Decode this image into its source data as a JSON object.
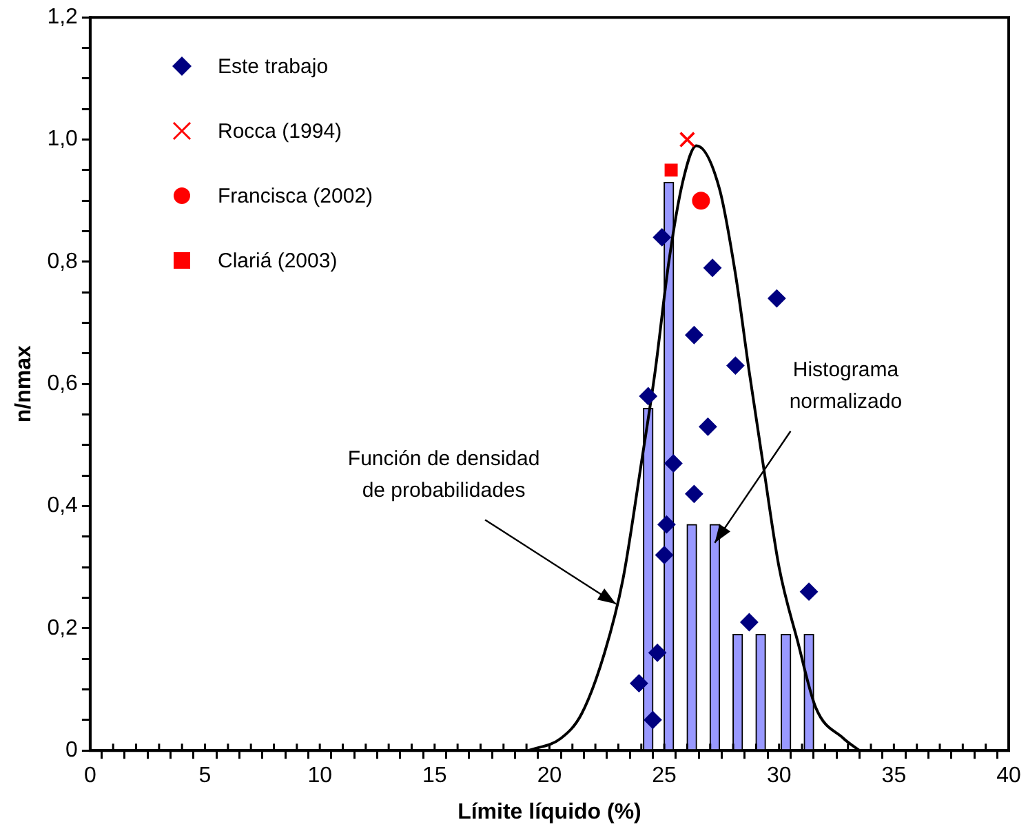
{
  "chart_data": {
    "type": "scatter",
    "xlabel": "Límite líquido (%)",
    "ylabel": "n/nmax",
    "xlim": [
      0,
      40
    ],
    "xticks": [
      0,
      {
        "value": 1,
        "label": null
      },
      {
        "value": 2,
        "label": null
      },
      {
        "value": 3,
        "label": null
      },
      {
        "value": 4,
        "label": null
      },
      5,
      {
        "value": 6,
        "label": null
      },
      {
        "value": 7,
        "label": null
      },
      {
        "value": 8,
        "label": null
      },
      {
        "value": 9,
        "label": null
      },
      10,
      {
        "value": 11,
        "label": null
      },
      {
        "value": 12,
        "label": null
      },
      {
        "value": 13,
        "label": null
      },
      {
        "value": 14,
        "label": null
      },
      15,
      {
        "value": 16,
        "label": null
      },
      {
        "value": 17,
        "label": null
      },
      {
        "value": 18,
        "label": null
      },
      {
        "value": 19,
        "label": null
      },
      20,
      {
        "value": 21,
        "label": null
      },
      {
        "value": 22,
        "label": null
      },
      {
        "value": 23,
        "label": null
      },
      {
        "value": 24,
        "label": null
      },
      25,
      {
        "value": 26,
        "label": null
      },
      {
        "value": 27,
        "label": null
      },
      {
        "value": 28,
        "label": null
      },
      {
        "value": 29,
        "label": null
      },
      30,
      {
        "value": 31,
        "label": null
      },
      {
        "value": 32,
        "label": null
      },
      {
        "value": 33,
        "label": null
      },
      {
        "value": 34,
        "label": null
      },
      35,
      {
        "value": 36,
        "label": null
      },
      {
        "value": 37,
        "label": null
      },
      {
        "value": 38,
        "label": null
      },
      {
        "value": 39,
        "label": null
      },
      40
    ],
    "ylim": [
      0,
      1.2
    ],
    "yticks": [
      0,
      {
        "value": 0.05,
        "label": null
      },
      {
        "value": 0.1,
        "label": null
      },
      {
        "value": 0.15,
        "label": null
      },
      {
        "value": 0.2,
        "label": "0,2"
      },
      {
        "value": 0.25,
        "label": null
      },
      {
        "value": 0.3,
        "label": null
      },
      {
        "value": 0.35,
        "label": null
      },
      {
        "value": 0.4,
        "label": "0,4"
      },
      {
        "value": 0.45,
        "label": null
      },
      {
        "value": 0.5,
        "label": null
      },
      {
        "value": 0.55,
        "label": null
      },
      {
        "value": 0.6,
        "label": "0,6"
      },
      {
        "value": 0.65,
        "label": null
      },
      {
        "value": 0.7,
        "label": null
      },
      {
        "value": 0.75,
        "label": null
      },
      {
        "value": 0.8,
        "label": "0,8"
      },
      {
        "value": 0.85,
        "label": null
      },
      {
        "value": 0.9,
        "label": null
      },
      {
        "value": 0.95,
        "label": null
      },
      {
        "value": 1,
        "label": "1,0"
      },
      {
        "value": 1.05,
        "label": null
      },
      {
        "value": 1.1,
        "label": null
      },
      {
        "value": 1.15,
        "label": null
      },
      {
        "value": 1.2,
        "label": "1,2"
      }
    ],
    "grid": false,
    "legend": "top left",
    "series": [
      {
        "type": "bar",
        "color": "#9999ff",
        "x": [
          24.3,
          25.2,
          26.2,
          27.2,
          28.2,
          29.2,
          30.3,
          31.3
        ],
        "values": [
          0.56,
          0.93,
          0.37,
          0.37,
          0.19,
          0.19,
          0.19,
          0.19
        ]
      },
      {
        "type": "line",
        "color": "#000000",
        "marker": "none",
        "line_style": "solid",
        "x": [
          19.1,
          20.5,
          21.4,
          22.4,
          23.2,
          24.0,
          24.6,
          25.2,
          25.8,
          26.4,
          27.4,
          28.1,
          28.7,
          29.3,
          30.0,
          30.8,
          31.6,
          32.8,
          33.5
        ],
        "values": [
          0,
          0.02,
          0.06,
          0.16,
          0.28,
          0.47,
          0.62,
          0.8,
          0.93,
          0.99,
          0.92,
          0.78,
          0.62,
          0.47,
          0.3,
          0.18,
          0.07,
          0.02,
          0
        ]
      },
      {
        "name": "Este trabajo",
        "color": "#000080",
        "marker": "diamond",
        "x": [
          24.9,
          27.1,
          29.9,
          26.3,
          28.1,
          24.3,
          26.9,
          25.4,
          26.3,
          25.1,
          25.0,
          31.3,
          28.7,
          24.7,
          23.9,
          24.5
        ],
        "values": [
          0.84,
          0.79,
          0.74,
          0.68,
          0.63,
          0.58,
          0.53,
          0.47,
          0.42,
          0.37,
          0.32,
          0.26,
          0.21,
          0.16,
          0.11,
          0.05
        ]
      },
      {
        "name": "Rocca (1994)",
        "color": "#ff0000",
        "marker": "cross",
        "x": [
          26.0
        ],
        "values": [
          1.0
        ]
      },
      {
        "name": "Francisca (2002)",
        "color": "#ff0000",
        "marker": "circle",
        "x": [
          26.6
        ],
        "values": [
          0.9
        ]
      },
      {
        "name": "Clariá (2003)",
        "color": "#ff0000",
        "marker": "square",
        "x": [
          25.3
        ],
        "values": [
          0.95
        ]
      }
    ],
    "annotations": [
      {
        "text": "Función de densidad\nde probabilidades",
        "x": 22.9,
        "y": 0.24
      },
      {
        "text": "Histograma\nnormalizado",
        "x": 27.2,
        "y": 0.34
      }
    ]
  }
}
